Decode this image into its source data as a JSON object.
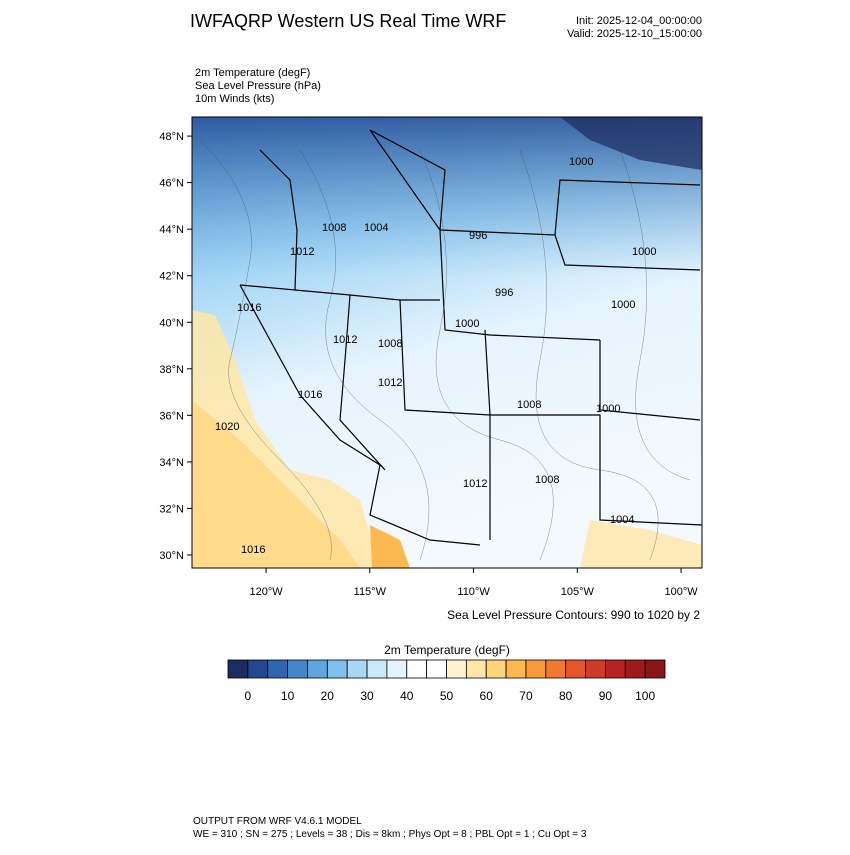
{
  "header": {
    "title": "IWFAQRP Western US Real Time WRF",
    "init": "Init: 2025-12-04_00:00:00",
    "valid": "Valid: 2025-12-10_15:00:00"
  },
  "fields": [
    "2m Temperature   (degF)",
    "Sea Level Pressure   (hPa)",
    "10m Winds   (kts)"
  ],
  "map": {
    "ylim": [
      29.44,
      48.82
    ],
    "xlim": [
      -123.57,
      -98.99
    ],
    "yticks": [
      {
        "value": 30,
        "label": "30°N"
      },
      {
        "value": 32,
        "label": "32°N"
      },
      {
        "value": 34,
        "label": "34°N"
      },
      {
        "value": 36,
        "label": "36°N"
      },
      {
        "value": 38,
        "label": "38°N"
      },
      {
        "value": 40,
        "label": "40°N"
      },
      {
        "value": 42,
        "label": "42°N"
      },
      {
        "value": 44,
        "label": "44°N"
      },
      {
        "value": 46,
        "label": "46°N"
      },
      {
        "value": 48,
        "label": "48°N"
      }
    ],
    "xticks": [
      {
        "value": -120,
        "label": "120°W"
      },
      {
        "value": -115,
        "label": "115°W"
      },
      {
        "value": -110,
        "label": "110°W"
      },
      {
        "value": -105,
        "label": "105°W"
      },
      {
        "value": -100,
        "label": "100°W"
      }
    ],
    "contour_labels": [
      "1000",
      "1008",
      "1004",
      "996",
      "1012",
      "1000",
      "996",
      "1000",
      "1016",
      "1000",
      "1012",
      "1008",
      "1012",
      "1016",
      "1008",
      "1000",
      "1020",
      "1012",
      "1008",
      "1004",
      "1016"
    ],
    "contour_note": "Sea Level Pressure Contours: 990 to 1020 by 2"
  },
  "colorbar": {
    "title": "2m Temperature  (degF)",
    "colors": [
      "#1c2c5e",
      "#23488f",
      "#2f66b0",
      "#4586c8",
      "#5ea6dd",
      "#82c0ec",
      "#a8d8f6",
      "#cbe8fa",
      "#e6f4fd",
      "#ffffff",
      "#ffffff",
      "#fff3d4",
      "#ffe6a6",
      "#ffd47a",
      "#fdb951",
      "#f99a3a",
      "#f2772f",
      "#e4552a",
      "#d03a27",
      "#b82224",
      "#a01a1c",
      "#8a1518"
    ],
    "ticks": [
      0,
      10,
      20,
      30,
      40,
      50,
      60,
      70,
      80,
      90,
      100
    ]
  },
  "footer": [
    "OUTPUT FROM WRF V4.6.1 MODEL",
    "WE = 310 ; SN = 275 ; Levels = 38 ; Dis = 8km ; Phys Opt = 8 ; PBL Opt = 1 ; Cu Opt = 3"
  ]
}
